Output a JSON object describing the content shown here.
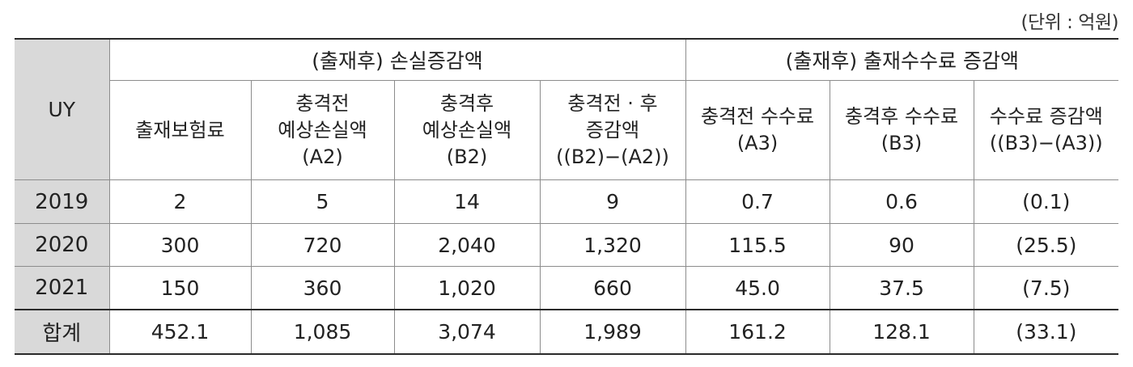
{
  "unit_label": "(단위 : 억원)",
  "header": {
    "uy": "UY",
    "group1": "(출재후) 손실증감액",
    "group2": "(출재후) 출재수수료 증감액",
    "subcols": [
      [
        "출재보험료"
      ],
      [
        "충격전",
        "예상손실액",
        "(A2)"
      ],
      [
        "충격후",
        "예상손실액",
        "(B2)"
      ],
      [
        "충격전 · 후",
        "증감액",
        "((B2)−(A2))"
      ],
      [
        "충격전 수수료",
        "(A3)"
      ],
      [
        "충격후 수수료",
        "(B3)"
      ],
      [
        "수수료 증감액",
        "((B3)−(A3))"
      ]
    ]
  },
  "rows": [
    {
      "label": "2019",
      "cells": [
        "2",
        "5",
        "14",
        "9",
        "0.7",
        "0.6",
        "(0.1)"
      ]
    },
    {
      "label": "2020",
      "cells": [
        "300",
        "720",
        "2,040",
        "1,320",
        "115.5",
        "90",
        "(25.5)"
      ]
    },
    {
      "label": "2021",
      "cells": [
        "150",
        "360",
        "1,020",
        "660",
        "45.0",
        "37.5",
        "(7.5)"
      ]
    },
    {
      "label": "합계",
      "cells": [
        "452.1",
        "1,085",
        "3,074",
        "1,989",
        "161.2",
        "128.1",
        "(33.1)"
      ]
    }
  ]
}
